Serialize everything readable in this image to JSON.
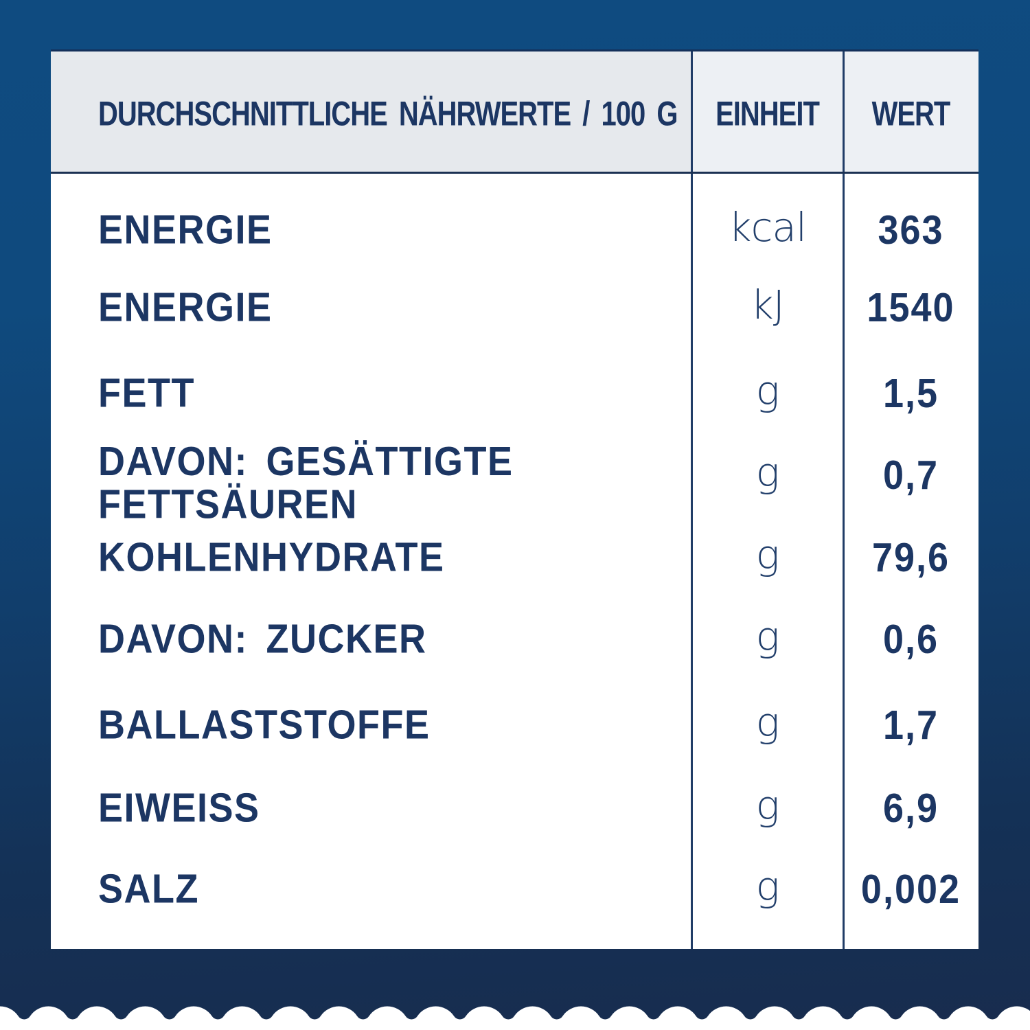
{
  "panel": {
    "header": {
      "label": "DURCHSCHNITTLICHE NÄHRWERTE / 100 G",
      "unit": "EINHEIT",
      "value": "WERT"
    },
    "rows": [
      {
        "label": "ENERGIE",
        "unit": "kcal",
        "value": "363"
      },
      {
        "label": "ENERGIE",
        "unit": "kJ",
        "value": "1540"
      },
      {
        "label": "FETT",
        "unit": "g",
        "value": "1,5"
      },
      {
        "label": "DAVON: GESÄTTIGTE FETTSÄUREN",
        "unit": "g",
        "value": "0,7"
      },
      {
        "label": "KOHLENHYDRATE",
        "unit": "g",
        "value": "79,6"
      },
      {
        "label": "DAVON: ZUCKER",
        "unit": "g",
        "value": "0,6"
      },
      {
        "label": "BALLASTSTOFFE",
        "unit": "g",
        "value": "1,7"
      },
      {
        "label": "EIWEISS",
        "unit": "g",
        "value": "6,9"
      },
      {
        "label": "SALZ",
        "unit": "g",
        "value": "0,002"
      }
    ],
    "colors": {
      "background_top": "#0f4b80",
      "background_bottom": "#182c4e",
      "card": "#ffffff",
      "header_band": "#e6e9ed",
      "header_band_right": "#edf0f4",
      "text": "#1c3663",
      "line": "#213d67"
    }
  }
}
